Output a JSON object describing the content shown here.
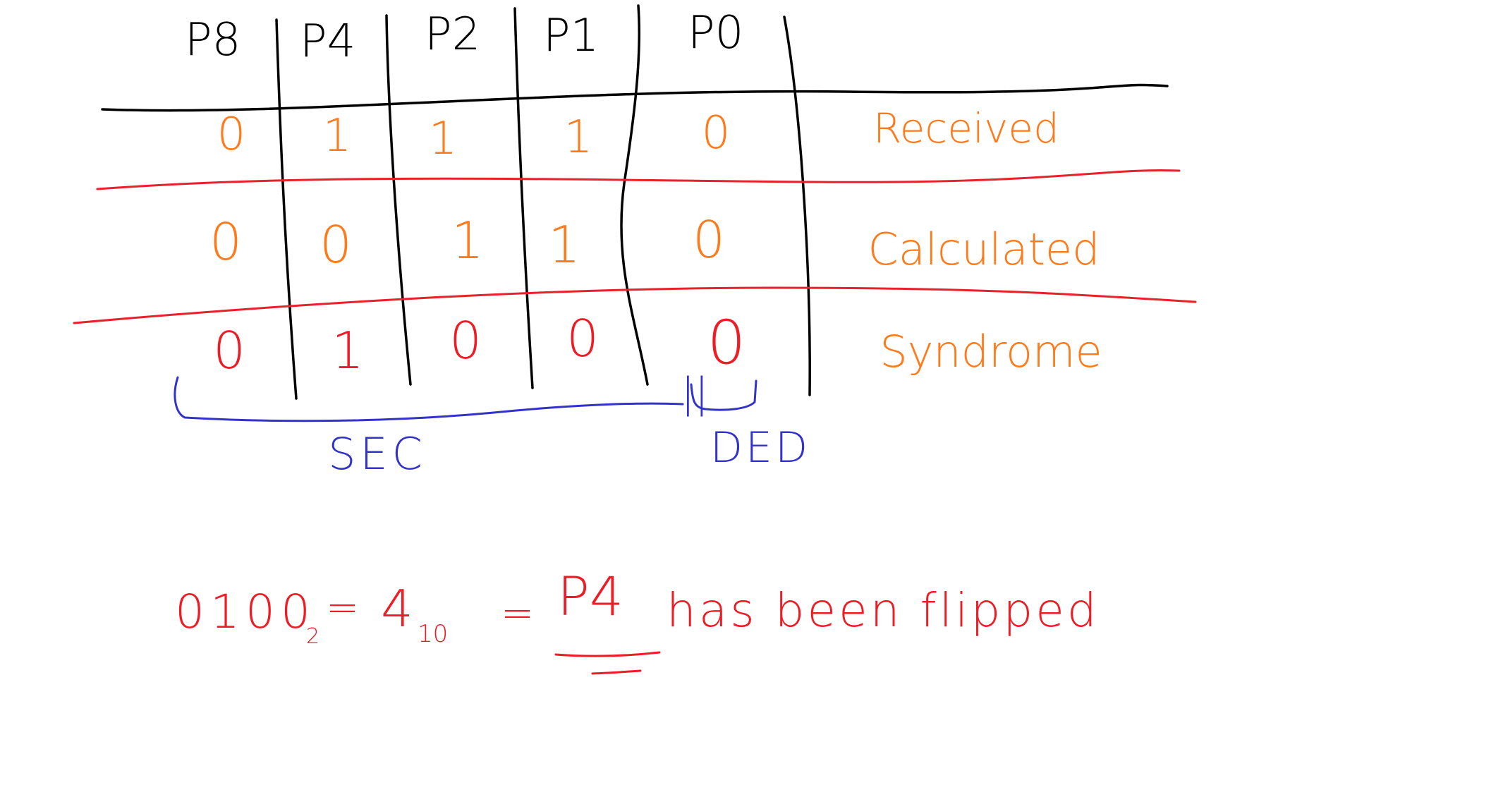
{
  "colors": {
    "ink": "#000000",
    "value": "#ff7a1a",
    "syndrome": "#ee1c25",
    "divider": "#e8212b",
    "brace": "#3333cc"
  },
  "columns": [
    "P8",
    "P4",
    "P2",
    "P1",
    "P0"
  ],
  "rows": [
    {
      "label": "Received",
      "values": [
        "0",
        "1",
        "1",
        "1",
        "0"
      ]
    },
    {
      "label": "Calculated",
      "values": [
        "0",
        "0",
        "1",
        "1",
        "0"
      ]
    },
    {
      "label": "Syndrome",
      "values": [
        "0",
        "1",
        "0",
        "0",
        "0"
      ]
    }
  ],
  "annotations": {
    "sec": "SEC",
    "ded": "DED",
    "equals_sign": "||"
  },
  "conclusion": {
    "binary": "0100",
    "binary_base": "2",
    "eq1": "=",
    "decimal": "4",
    "decimal_base": "10",
    "eq2": "=",
    "bit": "P4",
    "text": "has been flipped"
  }
}
